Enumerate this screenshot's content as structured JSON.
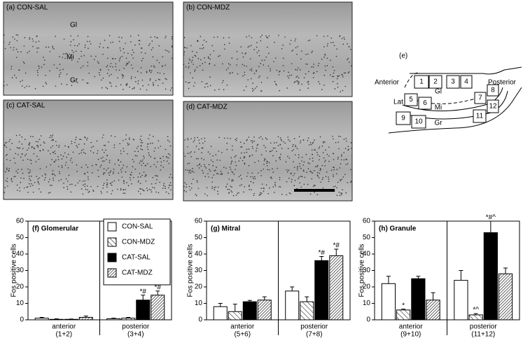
{
  "micrographs": [
    {
      "label": "(a) CON-SAL",
      "regions": [
        "Gl",
        "Mi",
        "Gr"
      ]
    },
    {
      "label": "(b) CON-MDZ"
    },
    {
      "label": "(c) CAT-SAL"
    },
    {
      "label": "(d) CAT-MDZ"
    }
  ],
  "diagram": {
    "label": "(e)",
    "anterior": "Anterior",
    "posterior": "Posterior",
    "layers": [
      "Gl",
      "Mi",
      "Gr"
    ],
    "lateral": "Lat",
    "boxes": [
      "1",
      "2",
      "3",
      "4",
      "5",
      "6",
      "7",
      "8",
      "9",
      "10",
      "11",
      "12"
    ]
  },
  "chart_data": [
    {
      "type": "bar",
      "title": "(f) Glomerular",
      "y_label": "Fos positive cells",
      "categories": [
        "anterior",
        "posterior"
      ],
      "category_sublabels": [
        "(1+2)",
        "(3+4)"
      ],
      "ylim": [
        0,
        60
      ],
      "yticks": [
        0,
        10,
        20,
        30,
        40,
        50,
        60
      ],
      "legend": true,
      "series": [
        {
          "name": "CON-SAL",
          "color": "#ffffff",
          "fill": "solid",
          "values": [
            1,
            0.7
          ],
          "errors": [
            0.5,
            0.3
          ]
        },
        {
          "name": "CON-MDZ",
          "color": "#000000",
          "fill": "hatch-sparse",
          "values": [
            0.3,
            1
          ],
          "errors": [
            0.3,
            0.5
          ]
        },
        {
          "name": "CAT-SAL",
          "color": "#000000",
          "fill": "solid",
          "values": [
            0.3,
            12
          ],
          "errors": [
            0.2,
            3
          ],
          "value_annotations": [
            null,
            "*#"
          ]
        },
        {
          "name": "CAT-MDZ",
          "color": "#000000",
          "fill": "hatch-dense",
          "values": [
            1.5,
            15
          ],
          "errors": [
            0.8,
            2.5
          ],
          "value_annotations": [
            null,
            "*#"
          ]
        }
      ]
    },
    {
      "type": "bar",
      "title": "(g) Mitral",
      "y_label": "Fos positive cells",
      "categories": [
        "anterior",
        "posterior"
      ],
      "category_sublabels": [
        "(5+6)",
        "(7+8)"
      ],
      "ylim": [
        0,
        60
      ],
      "yticks": [
        0,
        10,
        20,
        30,
        40,
        50,
        60
      ],
      "legend": false,
      "series": [
        {
          "name": "CON-SAL",
          "color": "#ffffff",
          "fill": "solid",
          "values": [
            8,
            17.5
          ],
          "errors": [
            2,
            2.5
          ]
        },
        {
          "name": "CON-MDZ",
          "color": "#000000",
          "fill": "hatch-sparse",
          "values": [
            5,
            11
          ],
          "errors": [
            4.5,
            3
          ]
        },
        {
          "name": "CAT-SAL",
          "color": "#000000",
          "fill": "solid",
          "values": [
            11,
            36
          ],
          "errors": [
            0.8,
            2.5
          ],
          "value_annotations": [
            null,
            "*#"
          ]
        },
        {
          "name": "CAT-MDZ",
          "color": "#000000",
          "fill": "hatch-dense",
          "values": [
            12,
            39
          ],
          "errors": [
            2,
            4
          ],
          "value_annotations": [
            null,
            "*#"
          ]
        }
      ]
    },
    {
      "type": "bar",
      "title": "(h) Granule",
      "y_label": "Fos positive cells",
      "categories": [
        "anterior",
        "posterior"
      ],
      "category_sublabels": [
        "(9+10)",
        "(11+12)"
      ],
      "ylim": [
        0,
        60
      ],
      "yticks": [
        0,
        10,
        20,
        30,
        40,
        50,
        60
      ],
      "legend": false,
      "series": [
        {
          "name": "CON-SAL",
          "color": "#ffffff",
          "fill": "solid",
          "values": [
            22,
            24
          ],
          "errors": [
            4.5,
            6
          ]
        },
        {
          "name": "CON-MDZ",
          "color": "#000000",
          "fill": "hatch-sparse",
          "values": [
            6,
            3
          ],
          "errors": [
            0.5,
            0.8
          ],
          "value_annotations": [
            "*",
            "*^"
          ]
        },
        {
          "name": "CAT-SAL",
          "color": "#000000",
          "fill": "solid",
          "values": [
            25,
            53
          ],
          "errors": [
            1.5,
            7
          ],
          "value_annotations": [
            null,
            "*#^"
          ]
        },
        {
          "name": "CAT-MDZ",
          "color": "#000000",
          "fill": "hatch-dense",
          "values": [
            12,
            28
          ],
          "errors": [
            4.5,
            3.5
          ]
        }
      ]
    }
  ]
}
